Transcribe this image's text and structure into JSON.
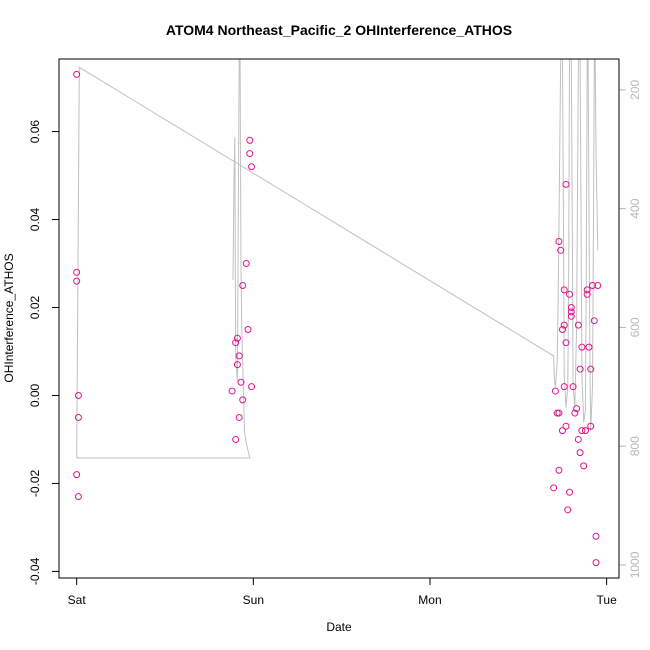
{
  "chart_data": {
    "type": "scatter",
    "title": "ATOM4 Northeast_Pacific_2 OHInterference_ATHOS",
    "xlabel": "Date",
    "ylabel": "OHInterference_ATHOS",
    "x_ticks": [
      "Sat",
      "Sun",
      "Mon",
      "Tue"
    ],
    "x_range_days": [
      -0.1,
      3.07
    ],
    "ylim": [
      -0.0415,
      0.0765
    ],
    "y_ticks": [
      -0.04,
      -0.02,
      0.0,
      0.02,
      0.04,
      0.06
    ],
    "y_tick_labels": [
      "-0.04",
      "-0.02",
      "0.00",
      "0.02",
      "0.04",
      "0.06"
    ],
    "grid": false,
    "series": [
      {
        "marker": "open-circle",
        "color": "#e0148c",
        "points": [
          [
            0.0,
            0.073
          ],
          [
            0.0,
            0.028
          ],
          [
            0.0,
            0.026
          ],
          [
            0.01,
            0.0
          ],
          [
            0.01,
            -0.005
          ],
          [
            0.0,
            -0.018
          ],
          [
            0.01,
            -0.023
          ],
          [
            0.88,
            0.001
          ],
          [
            0.9,
            -0.01
          ],
          [
            0.9,
            0.012
          ],
          [
            0.91,
            0.013
          ],
          [
            0.91,
            0.007
          ],
          [
            0.92,
            0.009
          ],
          [
            0.92,
            -0.005
          ],
          [
            0.93,
            0.003
          ],
          [
            0.94,
            0.025
          ],
          [
            0.94,
            -0.001
          ],
          [
            0.96,
            0.03
          ],
          [
            0.97,
            0.015
          ],
          [
            0.98,
            0.058
          ],
          [
            0.98,
            0.055
          ],
          [
            0.99,
            0.052
          ],
          [
            0.99,
            0.002
          ],
          [
            2.7,
            -0.021
          ],
          [
            2.71,
            0.001
          ],
          [
            2.72,
            -0.004
          ],
          [
            2.73,
            -0.004
          ],
          [
            2.73,
            -0.017
          ],
          [
            2.73,
            0.035
          ],
          [
            2.74,
            0.033
          ],
          [
            2.75,
            0.015
          ],
          [
            2.75,
            -0.008
          ],
          [
            2.76,
            0.016
          ],
          [
            2.76,
            0.002
          ],
          [
            2.76,
            0.024
          ],
          [
            2.77,
            0.048
          ],
          [
            2.77,
            0.012
          ],
          [
            2.77,
            -0.007
          ],
          [
            2.78,
            -0.026
          ],
          [
            2.79,
            -0.022
          ],
          [
            2.79,
            0.023
          ],
          [
            2.8,
            0.018
          ],
          [
            2.8,
            0.019
          ],
          [
            2.8,
            0.02
          ],
          [
            2.81,
            0.002
          ],
          [
            2.82,
            -0.004
          ],
          [
            2.83,
            -0.003
          ],
          [
            2.84,
            0.016
          ],
          [
            2.84,
            -0.01
          ],
          [
            2.85,
            -0.013
          ],
          [
            2.85,
            0.006
          ],
          [
            2.86,
            0.011
          ],
          [
            2.86,
            -0.008
          ],
          [
            2.87,
            -0.016
          ],
          [
            2.88,
            -0.008
          ],
          [
            2.89,
            0.023
          ],
          [
            2.89,
            0.024
          ],
          [
            2.9,
            0.011
          ],
          [
            2.91,
            0.006
          ],
          [
            2.91,
            -0.007
          ],
          [
            2.92,
            0.025
          ],
          [
            2.93,
            0.017
          ],
          [
            2.94,
            -0.032
          ],
          [
            2.94,
            -0.038
          ],
          [
            2.95,
            0.025
          ]
        ]
      },
      {
        "name": "",
        "axis": "right",
        "color": "#c0c0c0",
        "type": "line",
        "right_axis": {
          "ticks": [
            200,
            400,
            600,
            800,
            1000
          ],
          "inverted": true,
          "range": [
            1022,
            148
          ]
        },
        "points": [
          [
            0.0,
            820
          ],
          [
            0.015,
            162
          ],
          [
            2.7,
            648
          ],
          [
            2.705,
            690
          ],
          [
            2.71,
            700
          ],
          [
            2.72,
            660
          ],
          [
            2.725,
            560
          ],
          [
            2.73,
            440
          ],
          [
            2.74,
            148
          ],
          [
            2.75,
            148
          ],
          [
            2.755,
            400
          ],
          [
            2.76,
            680
          ],
          [
            2.77,
            735
          ],
          [
            2.78,
            700
          ],
          [
            2.785,
            500
          ],
          [
            2.79,
            148
          ],
          [
            2.8,
            148
          ],
          [
            2.805,
            400
          ],
          [
            2.81,
            700
          ],
          [
            2.82,
            735
          ],
          [
            2.83,
            600
          ],
          [
            2.84,
            148
          ],
          [
            2.85,
            148
          ],
          [
            2.855,
            400
          ],
          [
            2.86,
            680
          ],
          [
            2.87,
            760
          ],
          [
            2.88,
            740
          ],
          [
            2.885,
            500
          ],
          [
            2.89,
            148
          ],
          [
            2.895,
            148
          ],
          [
            2.9,
            400
          ],
          [
            2.905,
            650
          ],
          [
            2.91,
            775
          ],
          [
            2.92,
            700
          ],
          [
            2.925,
            450
          ],
          [
            2.93,
            148
          ],
          [
            2.935,
            148
          ],
          [
            2.94,
            300
          ],
          [
            2.95,
            470
          ]
        ]
      },
      {
        "name": "",
        "axis": "right",
        "color": "#c0c0c0",
        "type": "line",
        "points": [
          [
            0.0,
            820
          ],
          [
            0.98,
            820
          ],
          [
            0.96,
            795
          ],
          [
            0.95,
            775
          ],
          [
            0.935,
            600
          ],
          [
            0.93,
            500
          ],
          [
            0.925,
            148
          ],
          [
            0.92,
            148
          ],
          [
            0.915,
            400
          ],
          [
            0.91,
            690
          ],
          [
            0.9,
            650
          ],
          [
            0.895,
            280
          ],
          [
            0.89,
            360
          ],
          [
            0.885,
            520
          ]
        ]
      }
    ]
  }
}
